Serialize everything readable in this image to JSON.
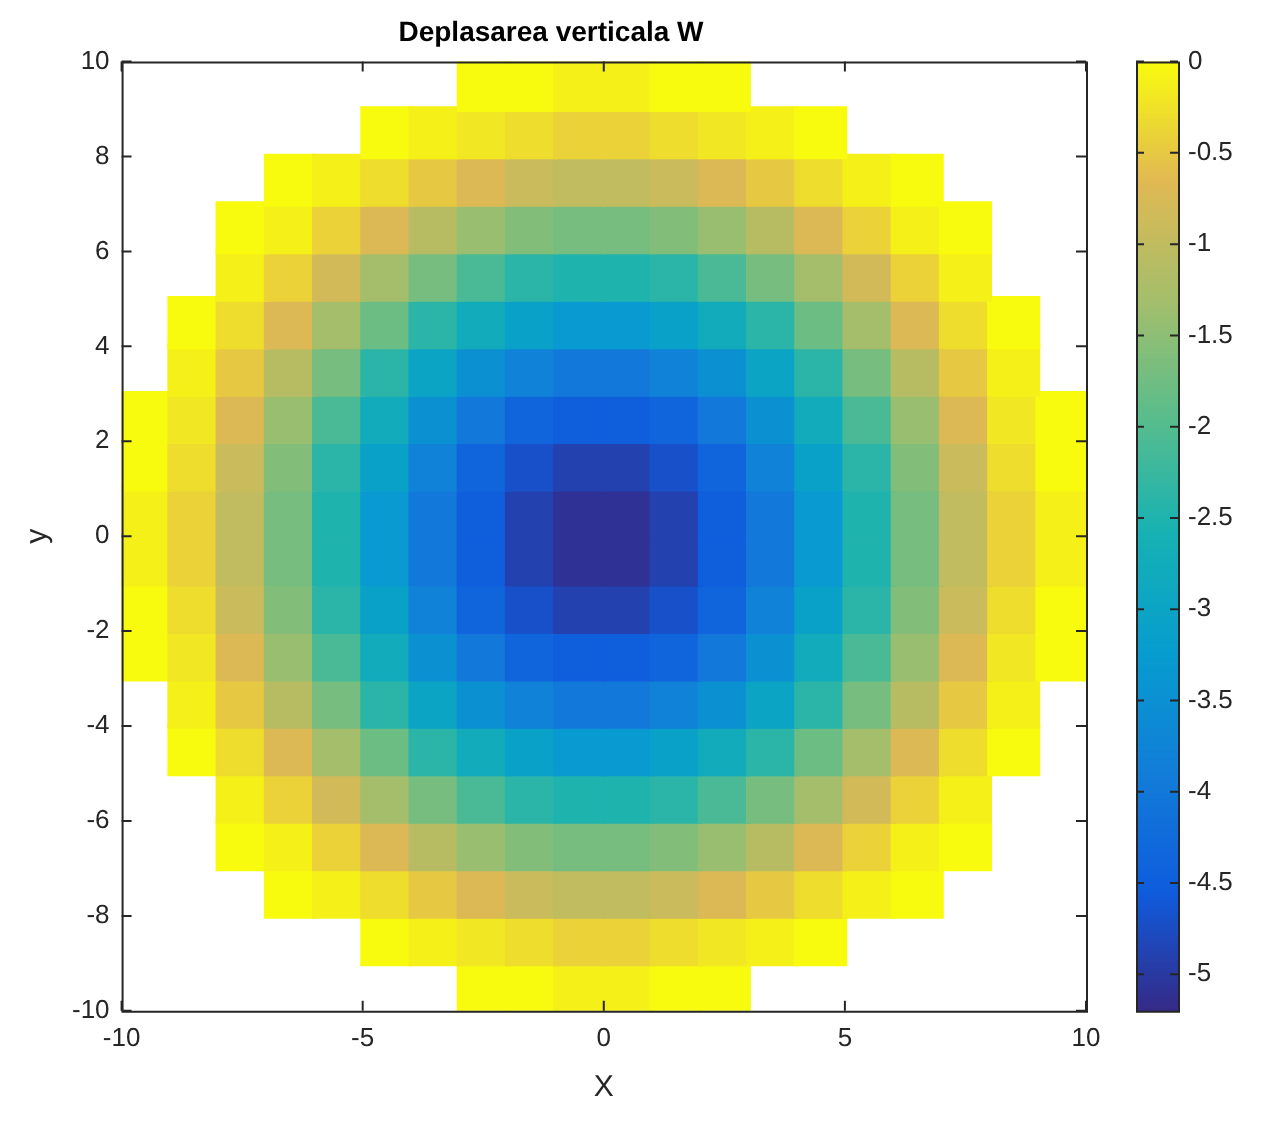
{
  "chart_data": {
    "type": "scatter",
    "title": "Deplasarea verticala W",
    "xlabel": "X",
    "ylabel": "y",
    "marker": "square",
    "xlim": [
      -10,
      10
    ],
    "xticks": [
      -10,
      -5,
      0,
      5,
      10
    ],
    "ylim": [
      -10,
      10
    ],
    "yticks": [
      -10,
      -8,
      -6,
      -4,
      -2,
      0,
      2,
      4,
      6,
      8,
      10
    ],
    "clim": [
      -5.2,
      0
    ],
    "cticks": [
      0,
      -0.5,
      -1,
      -1.5,
      -2,
      -2.5,
      -3,
      -3.5,
      -4,
      -4.5,
      -5
    ],
    "series": [
      {
        "x": [
          -2.5,
          -1.5,
          -0.5,
          0.5,
          1.5,
          2.5
        ],
        "values": [
          9.5,
          9.5,
          9.5,
          9.5,
          9.5,
          9.5
        ],
        "cvalues": [
          0,
          0,
          -0.1,
          -0.1,
          0,
          0
        ],
        "colors": [
          "#f9fb0e",
          "#f9fb0e",
          "#f5f118",
          "#f5f118",
          "#f9fb0e",
          "#f9fb0e"
        ]
      },
      {
        "x": [
          -4.5,
          -3.5,
          -2.5,
          -1.5,
          -0.5,
          0.5,
          1.5,
          2.5,
          3.5,
          4.5
        ],
        "values": [
          8.5,
          8.5,
          8.5,
          8.5,
          8.5,
          8.5,
          8.5,
          8.5,
          8.5,
          8.5
        ],
        "cvalues": [
          0,
          -0.1,
          -0.2,
          -0.3,
          -0.4,
          -0.4,
          -0.3,
          -0.2,
          -0.1,
          0
        ],
        "colors": [
          "#f9fb0e",
          "#f5f118",
          "#f2e723",
          "#eedc2d",
          "#ead238",
          "#ead238",
          "#eedc2d",
          "#f2e723",
          "#f5f118",
          "#f9fb0e"
        ]
      },
      {
        "x": [
          -6.5,
          -5.5,
          -4.5,
          -3.5,
          -2.5,
          -1.5,
          -0.5,
          0.5,
          1.5,
          2.5,
          3.5,
          4.5,
          5.5,
          6.5
        ],
        "values": [
          7.5,
          7.5,
          7.5,
          7.5,
          7.5,
          7.5,
          7.5,
          7.5,
          7.5,
          7.5,
          7.5,
          7.5,
          7.5,
          7.5
        ],
        "cvalues": [
          0,
          -0.1,
          -0.3,
          -0.5,
          -0.7,
          -0.9,
          -1,
          -1,
          -0.9,
          -0.7,
          -0.5,
          -0.3,
          -0.1,
          0
        ],
        "colors": [
          "#f9fb0e",
          "#f5f118",
          "#eedc2d",
          "#e6c842",
          "#dcb954",
          "#cabb5c",
          "#c1bc5f",
          "#c1bc5f",
          "#cabb5c",
          "#dcb954",
          "#e6c842",
          "#eedc2d",
          "#f5f118",
          "#f9fb0e"
        ]
      },
      {
        "x": [
          -7.5,
          -6.5,
          -5.5,
          -4.5,
          -3.5,
          -2.5,
          -1.5,
          -0.5,
          0.5,
          1.5,
          2.5,
          3.5,
          4.5,
          5.5,
          6.5,
          7.5
        ],
        "values": [
          6.5,
          6.5,
          6.5,
          6.5,
          6.5,
          6.5,
          6.5,
          6.5,
          6.5,
          6.5,
          6.5,
          6.5,
          6.5,
          6.5,
          6.5,
          6.5
        ],
        "cvalues": [
          0,
          -0.1,
          -0.4,
          -0.7,
          -1.1,
          -1.4,
          -1.6,
          -1.7,
          -1.7,
          -1.6,
          -1.4,
          -1.1,
          -0.7,
          -0.4,
          -0.1,
          0
        ],
        "colors": [
          "#f9fb0e",
          "#f5f118",
          "#ead238",
          "#dcb954",
          "#b8bc63",
          "#99be70",
          "#82be7a",
          "#76bd7f",
          "#76bd7f",
          "#82be7a",
          "#99be70",
          "#b8bc63",
          "#dcb954",
          "#ead238",
          "#f5f118",
          "#f9fb0e"
        ]
      },
      {
        "x": [
          -7.5,
          -6.5,
          -5.5,
          -4.5,
          -3.5,
          -2.5,
          -1.5,
          -0.5,
          0.5,
          1.5,
          2.5,
          3.5,
          4.5,
          5.5,
          6.5,
          7.5
        ],
        "values": [
          5.5,
          5.5,
          5.5,
          5.5,
          5.5,
          5.5,
          5.5,
          5.5,
          5.5,
          5.5,
          5.5,
          5.5,
          5.5,
          5.5,
          5.5,
          5.5
        ],
        "cvalues": [
          -0.1,
          -0.4,
          -0.8,
          -1.3,
          -1.7,
          -2.1,
          -2.4,
          -2.5,
          -2.5,
          -2.4,
          -2.1,
          -1.7,
          -1.3,
          -0.8,
          -0.4,
          -0.1
        ],
        "colors": [
          "#f5f118",
          "#ead238",
          "#d3ba58",
          "#a5be6b",
          "#76bd7f",
          "#49ba95",
          "#2ab5a8",
          "#20b3ae",
          "#20b3ae",
          "#2ab5a8",
          "#49ba95",
          "#76bd7f",
          "#a5be6b",
          "#d3ba58",
          "#ead238",
          "#f5f118"
        ]
      },
      {
        "x": [
          -8.5,
          -7.5,
          -6.5,
          -5.5,
          -4.5,
          -3.5,
          -2.5,
          -1.5,
          -0.5,
          0.5,
          1.5,
          2.5,
          3.5,
          4.5,
          5.5,
          6.5,
          7.5,
          8.5
        ],
        "values": [
          4.5,
          4.5,
          4.5,
          4.5,
          4.5,
          4.5,
          4.5,
          4.5,
          4.5,
          4.5,
          4.5,
          4.5,
          4.5,
          4.5,
          4.5,
          4.5,
          4.5,
          4.5
        ],
        "cvalues": [
          0,
          -0.3,
          -0.7,
          -1.3,
          -1.8,
          -2.4,
          -2.8,
          -3.1,
          -3.3,
          -3.3,
          -3.1,
          -2.8,
          -2.4,
          -1.8,
          -1.3,
          -0.7,
          -0.3,
          0
        ],
        "colors": [
          "#f9fb0e",
          "#eedc2d",
          "#dcb954",
          "#a5be6b",
          "#6bbd84",
          "#2ab5a8",
          "#11abbc",
          "#0aa1c9",
          "#089ad0",
          "#089ad0",
          "#0aa1c9",
          "#11abbc",
          "#2ab5a8",
          "#6bbd84",
          "#a5be6b",
          "#dcb954",
          "#eedc2d",
          "#f9fb0e"
        ]
      },
      {
        "x": [
          -8.5,
          -7.5,
          -6.5,
          -5.5,
          -4.5,
          -3.5,
          -2.5,
          -1.5,
          -0.5,
          0.5,
          1.5,
          2.5,
          3.5,
          4.5,
          5.5,
          6.5,
          7.5,
          8.5
        ],
        "values": [
          3.5,
          3.5,
          3.5,
          3.5,
          3.5,
          3.5,
          3.5,
          3.5,
          3.5,
          3.5,
          3.5,
          3.5,
          3.5,
          3.5,
          3.5,
          3.5,
          3.5,
          3.5
        ],
        "cvalues": [
          -0.1,
          -0.5,
          -1.1,
          -1.7,
          -2.4,
          -3,
          -3.5,
          -3.8,
          -4,
          -4,
          -3.8,
          -3.5,
          -3,
          -2.4,
          -1.7,
          -1.1,
          -0.5,
          -0.1
        ],
        "colors": [
          "#f5f118",
          "#e6c842",
          "#b8bc63",
          "#76bd7f",
          "#2ab5a8",
          "#0ca4c5",
          "#0b90d3",
          "#1082d7",
          "#1278d9",
          "#1278d9",
          "#1082d7",
          "#0b90d3",
          "#0ca4c5",
          "#2ab5a8",
          "#76bd7f",
          "#b8bc63",
          "#e6c842",
          "#f5f118"
        ]
      },
      {
        "x": [
          -9.5,
          -8.5,
          -7.5,
          -6.5,
          -5.5,
          -4.5,
          -3.5,
          -2.5,
          -1.5,
          -0.5,
          0.5,
          1.5,
          2.5,
          3.5,
          4.5,
          5.5,
          6.5,
          7.5,
          8.5,
          9.5
        ],
        "values": [
          2.5,
          2.5,
          2.5,
          2.5,
          2.5,
          2.5,
          2.5,
          2.5,
          2.5,
          2.5,
          2.5,
          2.5,
          2.5,
          2.5,
          2.5,
          2.5,
          2.5,
          2.5,
          2.5,
          2.5
        ],
        "cvalues": [
          0,
          -0.2,
          -0.7,
          -1.4,
          -2.1,
          -2.8,
          -3.5,
          -4,
          -4.4,
          -4.5,
          -4.5,
          -4.4,
          -4,
          -3.5,
          -2.8,
          -2.1,
          -1.4,
          -0.7,
          -0.2,
          0
        ],
        "colors": [
          "#f9fb0e",
          "#f2e723",
          "#dcb954",
          "#99be70",
          "#49ba95",
          "#11abbc",
          "#0b90d3",
          "#1278d9",
          "#1064dc",
          "#0f5edd",
          "#0f5edd",
          "#1064dc",
          "#1278d9",
          "#0b90d3",
          "#11abbc",
          "#49ba95",
          "#99be70",
          "#dcb954",
          "#f2e723",
          "#f9fb0e"
        ]
      },
      {
        "x": [
          -9.5,
          -8.5,
          -7.5,
          -6.5,
          -5.5,
          -4.5,
          -3.5,
          -2.5,
          -1.5,
          -0.5,
          0.5,
          1.5,
          2.5,
          3.5,
          4.5,
          5.5,
          6.5,
          7.5,
          8.5,
          9.5
        ],
        "values": [
          1.5,
          1.5,
          1.5,
          1.5,
          1.5,
          1.5,
          1.5,
          1.5,
          1.5,
          1.5,
          1.5,
          1.5,
          1.5,
          1.5,
          1.5,
          1.5,
          1.5,
          1.5,
          1.5,
          1.5
        ],
        "cvalues": [
          0,
          -0.3,
          -0.9,
          -1.6,
          -2.4,
          -3.1,
          -3.8,
          -4.4,
          -4.7,
          -4.9,
          -4.9,
          -4.7,
          -4.4,
          -3.8,
          -3.1,
          -2.4,
          -1.6,
          -0.9,
          -0.3,
          0
        ],
        "colors": [
          "#f9fb0e",
          "#eedc2d",
          "#cabb5c",
          "#82be7a",
          "#2ab5a8",
          "#0aa1c9",
          "#1082d7",
          "#1064dc",
          "#1851c9",
          "#2341af",
          "#2341af",
          "#1851c9",
          "#1064dc",
          "#1082d7",
          "#0aa1c9",
          "#2ab5a8",
          "#82be7a",
          "#cabb5c",
          "#eedc2d",
          "#f9fb0e"
        ]
      },
      {
        "x": [
          -9.5,
          -8.5,
          -7.5,
          -6.5,
          -5.5,
          -4.5,
          -3.5,
          -2.5,
          -1.5,
          -0.5,
          0.5,
          1.5,
          2.5,
          3.5,
          4.5,
          5.5,
          6.5,
          7.5,
          8.5,
          9.5
        ],
        "values": [
          0.5,
          0.5,
          0.5,
          0.5,
          0.5,
          0.5,
          0.5,
          0.5,
          0.5,
          0.5,
          0.5,
          0.5,
          0.5,
          0.5,
          0.5,
          0.5,
          0.5,
          0.5,
          0.5,
          0.5
        ],
        "cvalues": [
          -0.1,
          -0.4,
          -1,
          -1.7,
          -2.5,
          -3.3,
          -4,
          -4.5,
          -4.9,
          -5.1,
          -5.1,
          -4.9,
          -4.5,
          -4,
          -3.3,
          -2.5,
          -1.7,
          -1,
          -0.4,
          -0.1
        ],
        "colors": [
          "#f5f118",
          "#ead238",
          "#c1bc5f",
          "#76bd7f",
          "#20b3ae",
          "#089ad0",
          "#1278d9",
          "#0f5edd",
          "#2341af",
          "#2f3294",
          "#2f3294",
          "#2341af",
          "#0f5edd",
          "#1278d9",
          "#089ad0",
          "#20b3ae",
          "#76bd7f",
          "#c1bc5f",
          "#ead238",
          "#f5f118"
        ]
      },
      {
        "x": [
          -9.5,
          -8.5,
          -7.5,
          -6.5,
          -5.5,
          -4.5,
          -3.5,
          -2.5,
          -1.5,
          -0.5,
          0.5,
          1.5,
          2.5,
          3.5,
          4.5,
          5.5,
          6.5,
          7.5,
          8.5,
          9.5
        ],
        "values": [
          -0.5,
          -0.5,
          -0.5,
          -0.5,
          -0.5,
          -0.5,
          -0.5,
          -0.5,
          -0.5,
          -0.5,
          -0.5,
          -0.5,
          -0.5,
          -0.5,
          -0.5,
          -0.5,
          -0.5,
          -0.5,
          -0.5,
          -0.5
        ],
        "cvalues": [
          -0.1,
          -0.4,
          -1,
          -1.7,
          -2.5,
          -3.3,
          -4,
          -4.5,
          -4.9,
          -5.1,
          -5.1,
          -4.9,
          -4.5,
          -4,
          -3.3,
          -2.5,
          -1.7,
          -1,
          -0.4,
          -0.1
        ],
        "colors": [
          "#f5f118",
          "#ead238",
          "#c1bc5f",
          "#76bd7f",
          "#20b3ae",
          "#089ad0",
          "#1278d9",
          "#0f5edd",
          "#2341af",
          "#2f3294",
          "#2f3294",
          "#2341af",
          "#0f5edd",
          "#1278d9",
          "#089ad0",
          "#20b3ae",
          "#76bd7f",
          "#c1bc5f",
          "#ead238",
          "#f5f118"
        ]
      },
      {
        "x": [
          -9.5,
          -8.5,
          -7.5,
          -6.5,
          -5.5,
          -4.5,
          -3.5,
          -2.5,
          -1.5,
          -0.5,
          0.5,
          1.5,
          2.5,
          3.5,
          4.5,
          5.5,
          6.5,
          7.5,
          8.5,
          9.5
        ],
        "values": [
          -1.5,
          -1.5,
          -1.5,
          -1.5,
          -1.5,
          -1.5,
          -1.5,
          -1.5,
          -1.5,
          -1.5,
          -1.5,
          -1.5,
          -1.5,
          -1.5,
          -1.5,
          -1.5,
          -1.5,
          -1.5,
          -1.5,
          -1.5
        ],
        "cvalues": [
          0,
          -0.3,
          -0.9,
          -1.6,
          -2.4,
          -3.1,
          -3.8,
          -4.4,
          -4.7,
          -4.9,
          -4.9,
          -4.7,
          -4.4,
          -3.8,
          -3.1,
          -2.4,
          -1.6,
          -0.9,
          -0.3,
          0
        ],
        "colors": [
          "#f9fb0e",
          "#eedc2d",
          "#cabb5c",
          "#82be7a",
          "#2ab5a8",
          "#0aa1c9",
          "#1082d7",
          "#1064dc",
          "#1851c9",
          "#2341af",
          "#2341af",
          "#1851c9",
          "#1064dc",
          "#1082d7",
          "#0aa1c9",
          "#2ab5a8",
          "#82be7a",
          "#cabb5c",
          "#eedc2d",
          "#f9fb0e"
        ]
      },
      {
        "x": [
          -9.5,
          -8.5,
          -7.5,
          -6.5,
          -5.5,
          -4.5,
          -3.5,
          -2.5,
          -1.5,
          -0.5,
          0.5,
          1.5,
          2.5,
          3.5,
          4.5,
          5.5,
          6.5,
          7.5,
          8.5,
          9.5
        ],
        "values": [
          -2.5,
          -2.5,
          -2.5,
          -2.5,
          -2.5,
          -2.5,
          -2.5,
          -2.5,
          -2.5,
          -2.5,
          -2.5,
          -2.5,
          -2.5,
          -2.5,
          -2.5,
          -2.5,
          -2.5,
          -2.5,
          -2.5,
          -2.5
        ],
        "cvalues": [
          0,
          -0.2,
          -0.7,
          -1.4,
          -2.1,
          -2.8,
          -3.5,
          -4,
          -4.4,
          -4.5,
          -4.5,
          -4.4,
          -4,
          -3.5,
          -2.8,
          -2.1,
          -1.4,
          -0.7,
          -0.2,
          0
        ],
        "colors": [
          "#f9fb0e",
          "#f2e723",
          "#dcb954",
          "#99be70",
          "#49ba95",
          "#11abbc",
          "#0b90d3",
          "#1278d9",
          "#1064dc",
          "#0f5edd",
          "#0f5edd",
          "#1064dc",
          "#1278d9",
          "#0b90d3",
          "#11abbc",
          "#49ba95",
          "#99be70",
          "#dcb954",
          "#f2e723",
          "#f9fb0e"
        ]
      },
      {
        "x": [
          -8.5,
          -7.5,
          -6.5,
          -5.5,
          -4.5,
          -3.5,
          -2.5,
          -1.5,
          -0.5,
          0.5,
          1.5,
          2.5,
          3.5,
          4.5,
          5.5,
          6.5,
          7.5,
          8.5
        ],
        "values": [
          -3.5,
          -3.5,
          -3.5,
          -3.5,
          -3.5,
          -3.5,
          -3.5,
          -3.5,
          -3.5,
          -3.5,
          -3.5,
          -3.5,
          -3.5,
          -3.5,
          -3.5,
          -3.5,
          -3.5,
          -3.5
        ],
        "cvalues": [
          -0.1,
          -0.5,
          -1.1,
          -1.7,
          -2.4,
          -3,
          -3.5,
          -3.8,
          -4,
          -4,
          -3.8,
          -3.5,
          -3,
          -2.4,
          -1.7,
          -1.1,
          -0.5,
          -0.1
        ],
        "colors": [
          "#f5f118",
          "#e6c842",
          "#b8bc63",
          "#76bd7f",
          "#2ab5a8",
          "#0ca4c5",
          "#0b90d3",
          "#1082d7",
          "#1278d9",
          "#1278d9",
          "#1082d7",
          "#0b90d3",
          "#0ca4c5",
          "#2ab5a8",
          "#76bd7f",
          "#b8bc63",
          "#e6c842",
          "#f5f118"
        ]
      },
      {
        "x": [
          -8.5,
          -7.5,
          -6.5,
          -5.5,
          -4.5,
          -3.5,
          -2.5,
          -1.5,
          -0.5,
          0.5,
          1.5,
          2.5,
          3.5,
          4.5,
          5.5,
          6.5,
          7.5,
          8.5
        ],
        "values": [
          -4.5,
          -4.5,
          -4.5,
          -4.5,
          -4.5,
          -4.5,
          -4.5,
          -4.5,
          -4.5,
          -4.5,
          -4.5,
          -4.5,
          -4.5,
          -4.5,
          -4.5,
          -4.5,
          -4.5,
          -4.5
        ],
        "cvalues": [
          0,
          -0.3,
          -0.7,
          -1.3,
          -1.8,
          -2.4,
          -2.8,
          -3.1,
          -3.3,
          -3.3,
          -3.1,
          -2.8,
          -2.4,
          -1.8,
          -1.3,
          -0.7,
          -0.3,
          0
        ],
        "colors": [
          "#f9fb0e",
          "#eedc2d",
          "#dcb954",
          "#a5be6b",
          "#6bbd84",
          "#2ab5a8",
          "#11abbc",
          "#0aa1c9",
          "#089ad0",
          "#089ad0",
          "#0aa1c9",
          "#11abbc",
          "#2ab5a8",
          "#6bbd84",
          "#a5be6b",
          "#dcb954",
          "#eedc2d",
          "#f9fb0e"
        ]
      },
      {
        "x": [
          -7.5,
          -6.5,
          -5.5,
          -4.5,
          -3.5,
          -2.5,
          -1.5,
          -0.5,
          0.5,
          1.5,
          2.5,
          3.5,
          4.5,
          5.5,
          6.5,
          7.5
        ],
        "values": [
          -5.5,
          -5.5,
          -5.5,
          -5.5,
          -5.5,
          -5.5,
          -5.5,
          -5.5,
          -5.5,
          -5.5,
          -5.5,
          -5.5,
          -5.5,
          -5.5,
          -5.5,
          -5.5
        ],
        "cvalues": [
          -0.1,
          -0.4,
          -0.8,
          -1.3,
          -1.7,
          -2.1,
          -2.4,
          -2.5,
          -2.5,
          -2.4,
          -2.1,
          -1.7,
          -1.3,
          -0.8,
          -0.4,
          -0.1
        ],
        "colors": [
          "#f5f118",
          "#ead238",
          "#d3ba58",
          "#a5be6b",
          "#76bd7f",
          "#49ba95",
          "#2ab5a8",
          "#20b3ae",
          "#20b3ae",
          "#2ab5a8",
          "#49ba95",
          "#76bd7f",
          "#a5be6b",
          "#d3ba58",
          "#ead238",
          "#f5f118"
        ]
      },
      {
        "x": [
          -7.5,
          -6.5,
          -5.5,
          -4.5,
          -3.5,
          -2.5,
          -1.5,
          -0.5,
          0.5,
          1.5,
          2.5,
          3.5,
          4.5,
          5.5,
          6.5,
          7.5
        ],
        "values": [
          -6.5,
          -6.5,
          -6.5,
          -6.5,
          -6.5,
          -6.5,
          -6.5,
          -6.5,
          -6.5,
          -6.5,
          -6.5,
          -6.5,
          -6.5,
          -6.5,
          -6.5,
          -6.5
        ],
        "cvalues": [
          0,
          -0.1,
          -0.4,
          -0.7,
          -1.1,
          -1.4,
          -1.6,
          -1.7,
          -1.7,
          -1.6,
          -1.4,
          -1.1,
          -0.7,
          -0.4,
          -0.1,
          0
        ],
        "colors": [
          "#f9fb0e",
          "#f5f118",
          "#ead238",
          "#dcb954",
          "#b8bc63",
          "#99be70",
          "#82be7a",
          "#76bd7f",
          "#76bd7f",
          "#82be7a",
          "#99be70",
          "#b8bc63",
          "#dcb954",
          "#ead238",
          "#f5f118",
          "#f9fb0e"
        ]
      },
      {
        "x": [
          -6.5,
          -5.5,
          -4.5,
          -3.5,
          -2.5,
          -1.5,
          -0.5,
          0.5,
          1.5,
          2.5,
          3.5,
          4.5,
          5.5,
          6.5
        ],
        "values": [
          -7.5,
          -7.5,
          -7.5,
          -7.5,
          -7.5,
          -7.5,
          -7.5,
          -7.5,
          -7.5,
          -7.5,
          -7.5,
          -7.5,
          -7.5,
          -7.5
        ],
        "cvalues": [
          0,
          -0.1,
          -0.3,
          -0.5,
          -0.7,
          -0.9,
          -1,
          -1,
          -0.9,
          -0.7,
          -0.5,
          -0.3,
          -0.1,
          0
        ],
        "colors": [
          "#f9fb0e",
          "#f5f118",
          "#eedc2d",
          "#e6c842",
          "#dcb954",
          "#cabb5c",
          "#c1bc5f",
          "#c1bc5f",
          "#cabb5c",
          "#dcb954",
          "#e6c842",
          "#eedc2d",
          "#f5f118",
          "#f9fb0e"
        ]
      },
      {
        "x": [
          -4.5,
          -3.5,
          -2.5,
          -1.5,
          -0.5,
          0.5,
          1.5,
          2.5,
          3.5,
          4.5
        ],
        "values": [
          -8.5,
          -8.5,
          -8.5,
          -8.5,
          -8.5,
          -8.5,
          -8.5,
          -8.5,
          -8.5,
          -8.5
        ],
        "cvalues": [
          0,
          -0.1,
          -0.2,
          -0.3,
          -0.4,
          -0.4,
          -0.3,
          -0.2,
          -0.1,
          0
        ],
        "colors": [
          "#f9fb0e",
          "#f5f118",
          "#f2e723",
          "#eedc2d",
          "#ead238",
          "#ead238",
          "#eedc2d",
          "#f2e723",
          "#f5f118",
          "#f9fb0e"
        ]
      },
      {
        "x": [
          -2.5,
          -1.5,
          -0.5,
          0.5,
          1.5,
          2.5
        ],
        "values": [
          -9.5,
          -9.5,
          -9.5,
          -9.5,
          -9.5,
          -9.5
        ],
        "cvalues": [
          0,
          0,
          -0.1,
          -0.1,
          0,
          0
        ],
        "colors": [
          "#f9fb0e",
          "#f9fb0e",
          "#f5f118",
          "#f5f118",
          "#f9fb0e",
          "#f9fb0e"
        ]
      }
    ]
  }
}
